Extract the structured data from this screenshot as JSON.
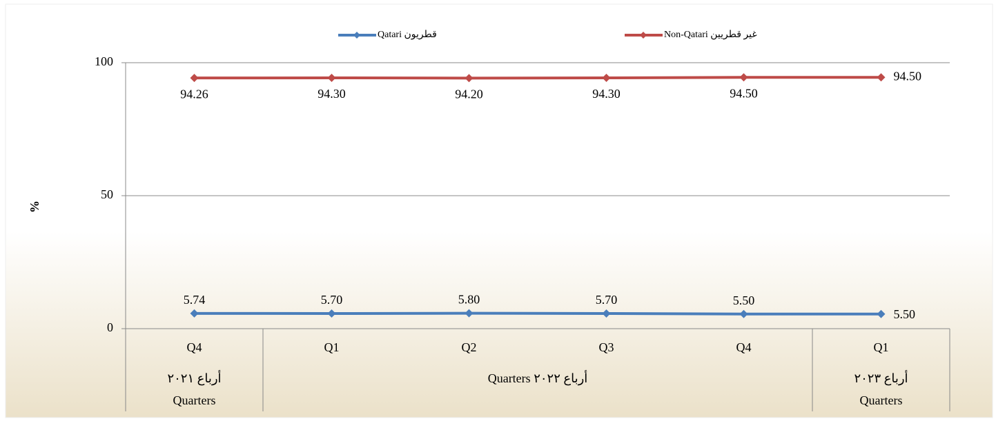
{
  "chart_data": {
    "type": "line",
    "y_label": "%",
    "categories": [
      "Q4",
      "Q1",
      "Q2",
      "Q3",
      "Q4",
      "Q1"
    ],
    "category_groups": [
      {
        "label": [
          "أرباع ٢٠٢١",
          "Quarters"
        ],
        "span": 1
      },
      {
        "label": [
          "أرباع ٢٠٢٢ Quarters"
        ],
        "span": 4
      },
      {
        "label": [
          "أرباع ٢٠٢٣",
          "Quarters"
        ],
        "span": 1
      }
    ],
    "series": [
      {
        "name": "قطريون Qatari",
        "color": "#4a7ebb",
        "values": [
          5.74,
          5.7,
          5.8,
          5.7,
          5.5,
          5.5
        ],
        "value_labels": [
          "5.74",
          "5.70",
          "5.80",
          "5.70",
          "5.50",
          "5.50"
        ]
      },
      {
        "name": "غير قطريين Non-Qatari",
        "color": "#be4b48",
        "values": [
          94.26,
          94.3,
          94.2,
          94.3,
          94.5,
          94.5
        ],
        "value_labels": [
          "94.26",
          "94.30",
          "94.20",
          "94.30",
          "94.50",
          "94.50"
        ]
      }
    ],
    "ylim": [
      0,
      100
    ],
    "yticks": [
      0,
      50,
      100
    ],
    "grid": true,
    "legend": "top"
  }
}
